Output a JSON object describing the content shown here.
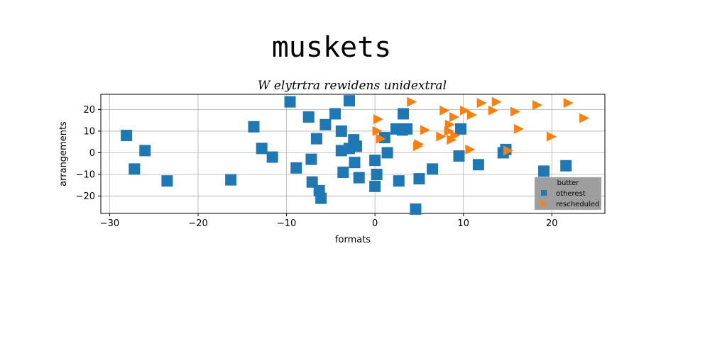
{
  "chart_data": {
    "type": "scatter",
    "title": "muskets",
    "subtitle": "W elytrtra rewidens unidextral",
    "xlabel": "formats",
    "ylabel": "arrangements",
    "xlim": [
      -31,
      26
    ],
    "ylim": [
      -28,
      27
    ],
    "xticks": [
      -30,
      -20,
      -10,
      0,
      10,
      20
    ],
    "yticks": [
      -20,
      -10,
      0,
      10,
      20
    ],
    "grid": true,
    "legend": {
      "title": "butter",
      "placement": "lower-right"
    },
    "series": [
      {
        "name": "otherest",
        "color": "#1f77b4",
        "marker": "square",
        "points": [
          [
            -28.1,
            8
          ],
          [
            -27.2,
            -7.5
          ],
          [
            -26,
            1
          ],
          [
            -23.5,
            -13
          ],
          [
            -16.3,
            -12.5
          ],
          [
            -13.7,
            12
          ],
          [
            -12.8,
            2
          ],
          [
            -11.6,
            -2
          ],
          [
            -9.6,
            23.5
          ],
          [
            -8.9,
            -7
          ],
          [
            -7.5,
            16.5
          ],
          [
            -7.2,
            -3
          ],
          [
            -7.1,
            -13.5
          ],
          [
            -6.6,
            6.5
          ],
          [
            -6.3,
            -17.5
          ],
          [
            -6.1,
            -21
          ],
          [
            -5.6,
            13
          ],
          [
            -4.5,
            18
          ],
          [
            -3.8,
            10
          ],
          [
            -3.8,
            1
          ],
          [
            -3.6,
            -9
          ],
          [
            -2.9,
            24
          ],
          [
            -2.9,
            2
          ],
          [
            -2.4,
            6
          ],
          [
            -2.3,
            -4.5
          ],
          [
            -2.1,
            3
          ],
          [
            -1.8,
            -11.5
          ],
          [
            0,
            -3.5
          ],
          [
            0,
            -15.5
          ],
          [
            0.2,
            -10
          ],
          [
            1.1,
            7
          ],
          [
            1.4,
            0
          ],
          [
            2.4,
            11
          ],
          [
            2.7,
            -13
          ],
          [
            3.1,
            10.5
          ],
          [
            3.2,
            18
          ],
          [
            3.6,
            11
          ],
          [
            4.6,
            -26
          ],
          [
            5,
            -12
          ],
          [
            6.5,
            -7.5
          ],
          [
            9.5,
            -1.5
          ],
          [
            9.7,
            11
          ],
          [
            11.7,
            -5.5
          ],
          [
            14.5,
            0
          ],
          [
            14.8,
            1.5
          ],
          [
            19.1,
            -8.5
          ],
          [
            21.6,
            -6
          ]
        ]
      },
      {
        "name": "rescheduled",
        "color": "#ff7f0e",
        "marker": "triangle-right",
        "points": [
          [
            0.2,
            10
          ],
          [
            0.3,
            15.5
          ],
          [
            0.6,
            6.5
          ],
          [
            4.1,
            23.5
          ],
          [
            4.8,
            3
          ],
          [
            4.9,
            4
          ],
          [
            5.6,
            10.5
          ],
          [
            7.4,
            7.5
          ],
          [
            7.8,
            19.5
          ],
          [
            8.3,
            10
          ],
          [
            8.4,
            13
          ],
          [
            8.6,
            6
          ],
          [
            8.9,
            16.5
          ],
          [
            9,
            8
          ],
          [
            10.1,
            19.5
          ],
          [
            10.7,
            1.5
          ],
          [
            10.9,
            17.5
          ],
          [
            12,
            23
          ],
          [
            13.3,
            19.5
          ],
          [
            13.7,
            23.5
          ],
          [
            15,
            1
          ],
          [
            15.8,
            19
          ],
          [
            16.2,
            11
          ],
          [
            18.3,
            22
          ],
          [
            19.9,
            7.5
          ],
          [
            21.8,
            23
          ],
          [
            23.6,
            16
          ]
        ]
      }
    ]
  }
}
